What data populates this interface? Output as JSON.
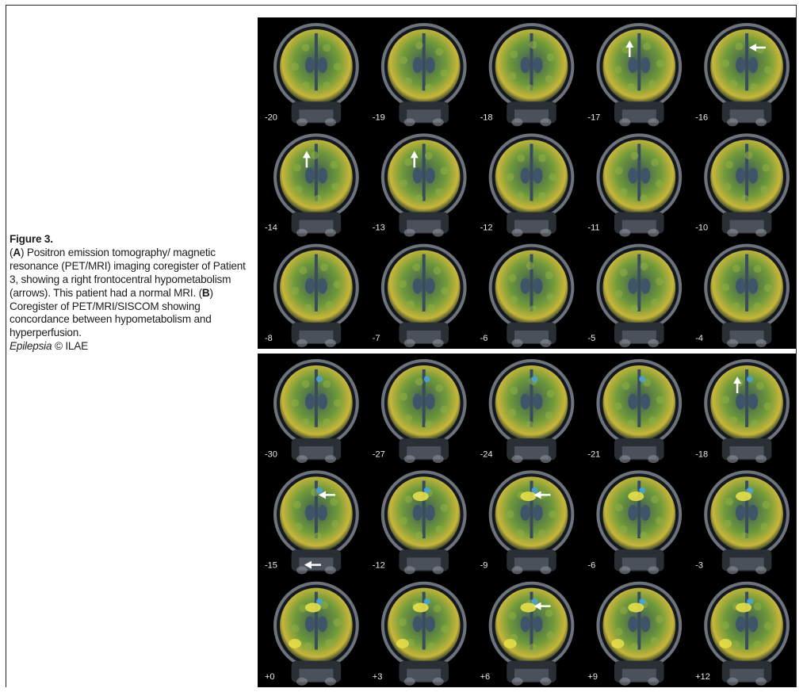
{
  "caption": {
    "figure_label": "Figure 3.",
    "part_a_letter": "A",
    "part_a_text_1": "Positron emission tomography/ magnetic resonance (PET/MRI) imaging coregister of Patient 3, showing a right frontocentral hypometabolism (arrows). This patient had a normal MRI.",
    "part_b_letter": "B",
    "part_b_text": "Coregister of PET/MRI/SISCOM showing concordance between hypometabolism and hyperperfusion.",
    "journal": "Epilepsia",
    "copyright": "© ILAE"
  },
  "panel_a": {
    "labels": [
      "-20",
      "-19",
      "-18",
      "-17",
      "-16",
      "-14",
      "-13",
      "-12",
      "-11",
      "-10",
      "-8",
      "-7",
      "-6",
      "-5",
      "-4"
    ],
    "arrows": [
      {
        "slice": 3,
        "dir": "up"
      },
      {
        "slice": 4,
        "dir": "left"
      },
      {
        "slice": 5,
        "dir": "up"
      },
      {
        "slice": 6,
        "dir": "up"
      }
    ]
  },
  "panel_b": {
    "labels": [
      "-30",
      "-27",
      "-24",
      "-21",
      "-18",
      "-15",
      "-12",
      "-9",
      "-6",
      "-3",
      "+0",
      "+3",
      "+6",
      "+9",
      "+12"
    ],
    "arrows": [
      {
        "slice": 4,
        "dir": "up"
      },
      {
        "slice": 5,
        "dir": "left"
      },
      {
        "slice": 7,
        "dir": "left"
      },
      {
        "slice": 12,
        "dir": "left"
      }
    ],
    "extra_arrow_under_slice": 5
  },
  "colors": {
    "pet_green": "#6f9a3a",
    "pet_yellow": "#c8b63a",
    "siscom_yellow": "#e6e04a",
    "siscom_blue": "#4aa3d8",
    "background": "#000000"
  }
}
